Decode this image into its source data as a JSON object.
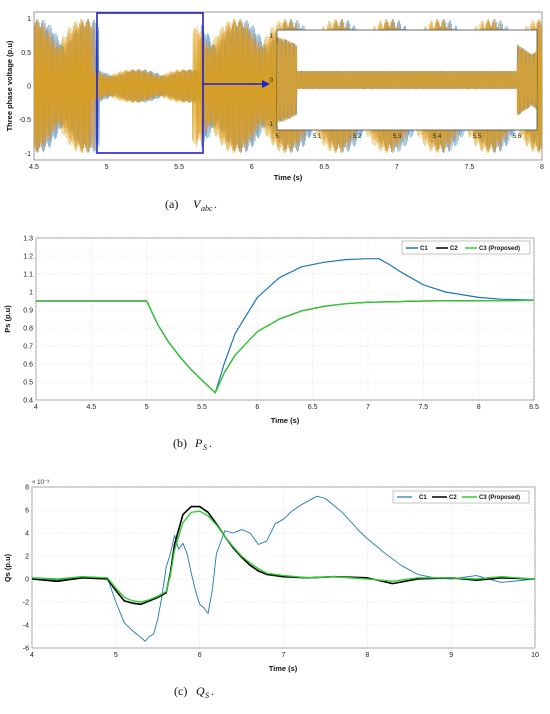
{
  "colors": {
    "phase_a": "#1f77b4",
    "phase_b": "#ff9f43",
    "phase_c": "#d4a017",
    "c1": "#1f77b4",
    "c2": "#000000",
    "c3": "#33cc33",
    "zoom_box": "#2222cc"
  },
  "chart_data": [
    {
      "type": "line",
      "id": "vabc",
      "caption_label": "(a)",
      "caption_symbol": "V",
      "caption_sub": "abc",
      "caption_end": ".",
      "xlabel": "Time (s)",
      "ylabel": "Three phase voltage (p.u)",
      "xlim": [
        4.5,
        8
      ],
      "ylim": [
        -1.1,
        1.1
      ],
      "xticks": [
        "4.5",
        "5",
        "5.5",
        "6",
        "6.5",
        "7",
        "7.5",
        "8"
      ],
      "yticks": [
        "-1",
        "-0.5",
        "0",
        "0.5",
        "1"
      ],
      "sag_interval": [
        4.95,
        5.65
      ],
      "sag_amplitude": 0.25,
      "normal_amplitude": 1.0,
      "inset": {
        "xlim": [
          5,
          5.65
        ],
        "xticks": [
          "5",
          "5.1",
          "5.2",
          "5.3",
          "5.4",
          "5.5",
          "5.6"
        ],
        "yticks": [
          "-1",
          "0",
          "1"
        ],
        "sag_interval": [
          5.05,
          5.6
        ]
      }
    },
    {
      "type": "line",
      "id": "ps",
      "caption_label": "(b)",
      "caption_symbol": "P",
      "caption_sub": "S",
      "caption_end": ".",
      "xlabel": "Time (s)",
      "ylabel": "Ps (p.u)",
      "xlim": [
        4,
        8.5
      ],
      "ylim": [
        0.4,
        1.3
      ],
      "xticks": [
        "4",
        "4.5",
        "5",
        "5.5",
        "6",
        "6.5",
        "7",
        "7.5",
        "8",
        "8.5"
      ],
      "yticks": [
        "0.4",
        "0.5",
        "0.6",
        "0.7",
        "0.8",
        "0.9",
        "1",
        "1.1",
        "1.2",
        "1.3"
      ],
      "legend_position": "top-right",
      "series": [
        {
          "name": "C1",
          "color": "#1f77b4",
          "x": [
            4,
            5,
            5.1,
            5.2,
            5.3,
            5.4,
            5.5,
            5.62,
            5.7,
            5.8,
            6.0,
            6.2,
            6.4,
            6.6,
            6.8,
            7.0,
            7.1,
            7.2,
            7.3,
            7.5,
            7.7,
            8.0,
            8.2,
            8.5
          ],
          "y": [
            0.95,
            0.95,
            0.82,
            0.72,
            0.64,
            0.57,
            0.51,
            0.44,
            0.6,
            0.77,
            0.97,
            1.08,
            1.14,
            1.165,
            1.18,
            1.185,
            1.185,
            1.15,
            1.11,
            1.04,
            1.0,
            0.97,
            0.96,
            0.955
          ]
        },
        {
          "name": "C2",
          "color": "#000000",
          "x": [
            4,
            5,
            5.1,
            5.2,
            5.3,
            5.4,
            5.5,
            5.62,
            5.7,
            5.8,
            6.0,
            6.2,
            6.4,
            6.6,
            6.8,
            7.0,
            7.5,
            8.0,
            8.5
          ],
          "y": [
            0.95,
            0.95,
            0.82,
            0.72,
            0.64,
            0.57,
            0.51,
            0.44,
            0.55,
            0.65,
            0.78,
            0.85,
            0.895,
            0.92,
            0.935,
            0.943,
            0.95,
            0.952,
            0.953
          ]
        },
        {
          "name": "C3 (Proposed)",
          "color": "#33cc33",
          "x": [
            4,
            5,
            5.1,
            5.2,
            5.3,
            5.4,
            5.5,
            5.62,
            5.7,
            5.8,
            6.0,
            6.2,
            6.4,
            6.6,
            6.8,
            7.0,
            7.5,
            8.0,
            8.5
          ],
          "y": [
            0.95,
            0.95,
            0.82,
            0.72,
            0.64,
            0.57,
            0.51,
            0.44,
            0.55,
            0.65,
            0.78,
            0.85,
            0.895,
            0.92,
            0.935,
            0.943,
            0.95,
            0.952,
            0.953
          ]
        }
      ]
    },
    {
      "type": "line",
      "id": "qs",
      "caption_label": "(c)",
      "caption_symbol": "Q",
      "caption_sub": "S",
      "caption_end": ".",
      "xlabel": "Time (s)",
      "ylabel": "Qs (p.u)",
      "y_multiplier": "× 10⁻³",
      "xlim": [
        4,
        10
      ],
      "ylim": [
        -6,
        8
      ],
      "xticks": [
        "4",
        "5",
        "6",
        "7",
        "8",
        "9",
        "10"
      ],
      "yticks": [
        "-6",
        "-4",
        "-2",
        "0",
        "2",
        "4",
        "6",
        "8"
      ],
      "legend_position": "top-right",
      "series": [
        {
          "name": "C1",
          "color": "#1f77b4",
          "x": [
            4.0,
            4.3,
            4.6,
            4.9,
            5.0,
            5.1,
            5.2,
            5.3,
            5.35,
            5.4,
            5.45,
            5.5,
            5.55,
            5.6,
            5.65,
            5.7,
            5.75,
            5.8,
            5.85,
            5.9,
            5.95,
            6.0,
            6.05,
            6.1,
            6.15,
            6.2,
            6.3,
            6.4,
            6.5,
            6.6,
            6.7,
            6.8,
            6.9,
            7.0,
            7.1,
            7.2,
            7.3,
            7.4,
            7.5,
            7.6,
            7.7,
            7.8,
            7.9,
            8.0,
            8.2,
            8.4,
            8.6,
            8.8,
            9.0,
            9.3,
            9.6,
            10.0
          ],
          "y": [
            0.1,
            -0.1,
            0.2,
            0.1,
            -2.0,
            -3.8,
            -4.5,
            -5.1,
            -5.4,
            -5.0,
            -4.8,
            -3.5,
            -1.5,
            1.0,
            2.2,
            3.8,
            2.6,
            3.1,
            2.2,
            0.5,
            -1.0,
            -2.2,
            -2.5,
            -3.0,
            -1.0,
            2.2,
            4.2,
            4.0,
            4.3,
            4.0,
            3.0,
            3.3,
            4.8,
            5.2,
            5.9,
            6.4,
            6.8,
            7.2,
            7.0,
            6.4,
            5.8,
            5.0,
            4.2,
            3.5,
            2.3,
            1.2,
            0.4,
            0.1,
            0.0,
            0.3,
            -0.3,
            0.0
          ]
        },
        {
          "name": "C2",
          "color": "#000000",
          "x": [
            4.0,
            4.3,
            4.6,
            4.9,
            5.0,
            5.1,
            5.2,
            5.3,
            5.4,
            5.5,
            5.6,
            5.65,
            5.7,
            5.8,
            5.9,
            6.0,
            6.1,
            6.2,
            6.3,
            6.4,
            6.5,
            6.6,
            6.7,
            6.8,
            7.0,
            7.3,
            7.6,
            8.0,
            8.3,
            8.6,
            9.0,
            9.3,
            9.6,
            10.0
          ],
          "y": [
            0.0,
            -0.2,
            0.1,
            0.0,
            -1.0,
            -1.9,
            -2.1,
            -2.2,
            -1.9,
            -1.6,
            -1.2,
            0.5,
            3.0,
            5.6,
            6.3,
            6.3,
            5.8,
            4.8,
            3.7,
            2.7,
            1.9,
            1.2,
            0.7,
            0.4,
            0.2,
            0.1,
            0.2,
            0.1,
            -0.4,
            0.0,
            0.1,
            -0.1,
            0.1,
            0.0
          ]
        },
        {
          "name": "C3 (Proposed)",
          "color": "#33cc33",
          "x": [
            4.0,
            4.3,
            4.6,
            4.9,
            5.0,
            5.1,
            5.2,
            5.3,
            5.4,
            5.5,
            5.6,
            5.65,
            5.7,
            5.8,
            5.9,
            6.0,
            6.1,
            6.2,
            6.3,
            6.4,
            6.5,
            6.6,
            6.7,
            6.8,
            7.0,
            7.3,
            7.6,
            8.0,
            8.3,
            8.6,
            9.0,
            9.3,
            9.6,
            10.0
          ],
          "y": [
            0.1,
            0.0,
            0.2,
            0.1,
            -0.8,
            -1.6,
            -1.9,
            -2.0,
            -1.8,
            -1.5,
            -1.1,
            0.3,
            2.5,
            4.9,
            5.8,
            5.9,
            5.5,
            4.7,
            3.7,
            2.8,
            2.0,
            1.4,
            0.9,
            0.5,
            0.3,
            0.1,
            0.2,
            0.0,
            -0.2,
            0.1,
            0.1,
            0.0,
            0.2,
            0.0
          ]
        }
      ]
    }
  ]
}
